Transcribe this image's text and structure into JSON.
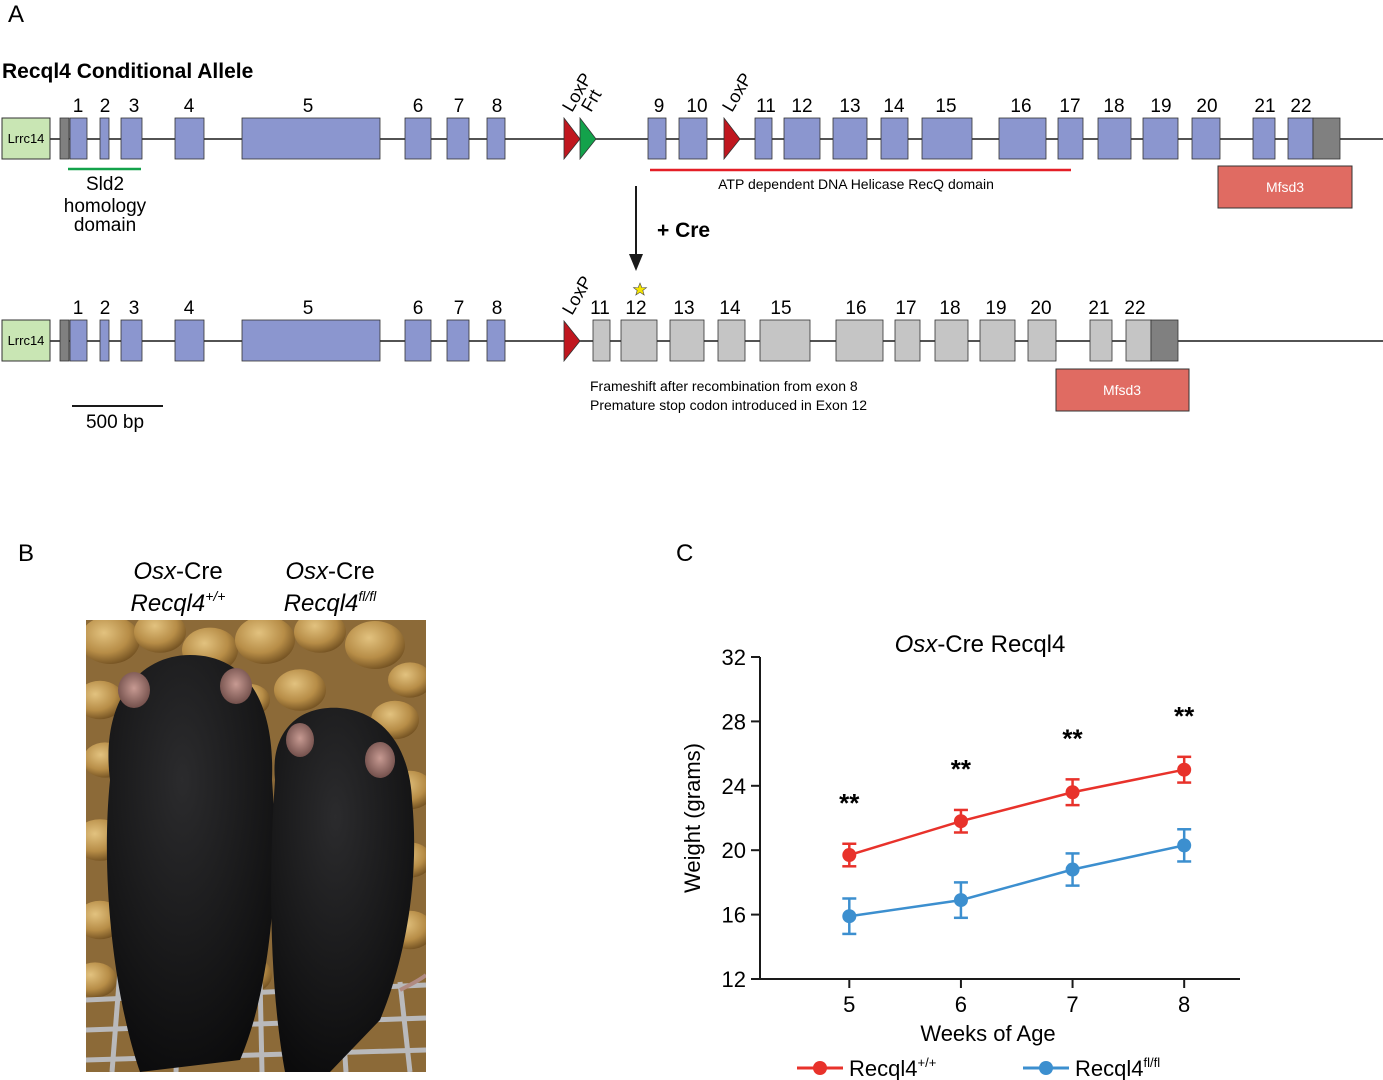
{
  "panelA": {
    "label": "A",
    "title": "Recql4 Conditional Allele",
    "upstream_gene": "Lrrc14",
    "row1_exons": [
      "1",
      "2",
      "3",
      "4",
      "5",
      "6",
      "7",
      "8",
      "9",
      "10",
      "11",
      "12",
      "13",
      "14",
      "15",
      "16",
      "17",
      "18",
      "19",
      "20",
      "21",
      "22"
    ],
    "row2_exons": [
      "1",
      "2",
      "3",
      "4",
      "5",
      "6",
      "7",
      "8",
      "11",
      "12",
      "13",
      "14",
      "15",
      "16",
      "17",
      "18",
      "19",
      "20",
      "21",
      "22"
    ],
    "loxp": "LoxP",
    "frt": "Frt",
    "sld2_line1": "Sld2",
    "sld2_line2": "homology",
    "sld2_line3": "domain",
    "helicase": "ATP dependent DNA Helicase RecQ domain",
    "mfsd3": "Mfsd3",
    "cre": "+ Cre",
    "frameshift": "Frameshift after recombination from exon 8",
    "stop": "Premature stop codon introduced in Exon 12",
    "scale": "500 bp"
  },
  "panelB": {
    "label": "B",
    "left_line1_italic": "Osx",
    "left_line1_rest": "-Cre",
    "left_line2_gene": "Recql4",
    "left_line2_sup": "+/+",
    "right_line1_italic": "Osx",
    "right_line1_rest": "-Cre",
    "right_line2_gene": "Recql4",
    "right_line2_sup": "fl/fl"
  },
  "panelC": {
    "label": "C"
  },
  "colors": {
    "exon": "#8b96cf",
    "exon_deleted": "#c5c5c5",
    "utr": "#808080",
    "lrrc14": "#c9e6b4",
    "loxp": "#c0171f",
    "frt": "#13a24b",
    "mfsd3": "#e06b62",
    "sld2_line": "#13a24b",
    "helicase_line": "#e41e26",
    "wildtype": "#e8322b",
    "floxed": "#3c8fcf"
  },
  "chart_data": {
    "type": "line",
    "title_italic": "Osx",
    "title_rest": "-Cre Recql4",
    "xlabel": "Weeks of Age",
    "ylabel": "Weight (grams)",
    "x": [
      5,
      6,
      7,
      8
    ],
    "xlim": [
      4.2,
      8.5
    ],
    "ylim": [
      12,
      32
    ],
    "yticks": [
      12,
      16,
      20,
      24,
      28,
      32
    ],
    "annotations": [
      "**",
      "**",
      "**",
      "**"
    ],
    "legend_position": "bottom",
    "series": [
      {
        "name": "Recql4",
        "sup": "+/+",
        "values": [
          19.7,
          21.8,
          23.6,
          25.0
        ],
        "errors": [
          0.7,
          0.7,
          0.8,
          0.8
        ],
        "color": "#e8322b"
      },
      {
        "name": "Recql4",
        "sup": "fl/fl",
        "values": [
          15.9,
          16.9,
          18.8,
          20.3
        ],
        "errors": [
          1.1,
          1.1,
          1.0,
          1.0
        ],
        "color": "#3c8fcf"
      }
    ]
  }
}
